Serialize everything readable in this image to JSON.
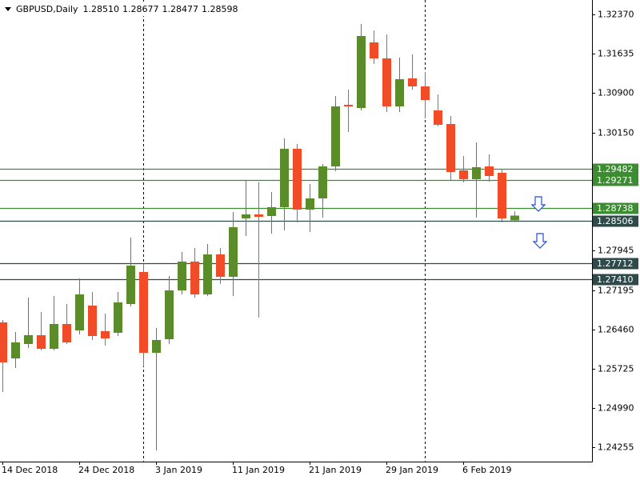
{
  "chart_data": {
    "type": "candlestick",
    "title": "GBPUSD,Daily",
    "header_values": [
      "1.28510",
      "1.28677",
      "1.28477",
      "1.28598"
    ],
    "up_color": "#5b8c2a",
    "down_color": "#f24b27",
    "categories": [
      "14 Dec 2018",
      null,
      null,
      null,
      null,
      null,
      "24 Dec 2018",
      null,
      null,
      null,
      null,
      null,
      "3 Jan 2019",
      null,
      null,
      null,
      null,
      null,
      "11 Jan 2019",
      null,
      null,
      null,
      null,
      null,
      "21 Jan 2019",
      null,
      null,
      null,
      null,
      null,
      "29 Jan 2019",
      null,
      null,
      null,
      null,
      null,
      "6 Feb 2019",
      null,
      null,
      null,
      null
    ],
    "open": [
      1.26595,
      1.2592,
      1.2619,
      1.26355,
      1.261,
      1.26565,
      1.26445,
      1.2691,
      1.2643,
      1.264,
      1.2694,
      1.2754,
      1.26025,
      1.2628,
      1.27195,
      1.27735,
      1.2712,
      1.2787,
      1.2745,
      1.28545,
      1.2862,
      1.2859,
      1.28755,
      1.2985,
      1.2871,
      1.2892,
      1.2952,
      1.30675,
      1.30615,
      1.31845,
      1.31545,
      1.30645,
      1.3117,
      1.3102,
      1.3057,
      1.30315,
      1.29445,
      1.2928,
      1.2952,
      1.294,
      1.2851
    ],
    "high": [
      1.2664,
      1.26415,
      1.2706,
      1.2679,
      1.2709,
      1.2694,
      1.2742,
      1.27165,
      1.2676,
      1.27165,
      1.28185,
      1.2769,
      1.2649,
      1.27465,
      1.27915,
      1.2799,
      1.28065,
      1.2799,
      1.28665,
      1.2925,
      1.2922,
      1.2904,
      1.30045,
      1.2994,
      1.2919,
      1.29565,
      1.3084,
      1.3096,
      1.3219,
      1.3207,
      1.31995,
      1.3156,
      1.3162,
      1.3129,
      1.3087,
      1.30465,
      1.29715,
      1.2997,
      1.29745,
      1.2946,
      1.28677
    ],
    "low": [
      1.2529,
      1.2574,
      1.26115,
      1.2607,
      1.2607,
      1.2619,
      1.2637,
      1.26265,
      1.2616,
      1.2634,
      1.26895,
      1.2577,
      1.24195,
      1.2619,
      1.2712,
      1.2706,
      1.2709,
      1.27315,
      1.2709,
      1.28215,
      1.26685,
      1.2826,
      1.2832,
      1.2847,
      1.2829,
      1.2856,
      1.2943,
      1.30165,
      1.3057,
      1.3144,
      1.3054,
      1.3054,
      1.3096,
      1.3042,
      1.3027,
      1.29265,
      1.2922,
      1.2856,
      1.29235,
      1.2847,
      1.28477
    ],
    "close": [
      1.25845,
      1.2622,
      1.26355,
      1.261,
      1.26565,
      1.2622,
      1.2712,
      1.2634,
      1.26295,
      1.2697,
      1.2766,
      1.26025,
      1.26265,
      1.27195,
      1.27735,
      1.2712,
      1.2787,
      1.2745,
      1.2838,
      1.2862,
      1.28575,
      1.28755,
      1.2985,
      1.2871,
      1.2892,
      1.2952,
      1.30645,
      1.30645,
      1.31965,
      1.31545,
      1.30645,
      1.31155,
      1.3102,
      1.30765,
      1.303,
      1.29415,
      1.2928,
      1.29505,
      1.2934,
      1.28545,
      1.28598
    ],
    "ylim": [
      1.23985,
      1.3264
    ],
    "yticks": [
      {
        "value": 1.3237,
        "label": "1.32370"
      },
      1.31635,
      {
        "value": 1.309,
        "label": "1.30900"
      },
      {
        "value": 1.3015,
        "label": "1.30150"
      },
      1.27945,
      1.27195,
      {
        "value": 1.2646,
        "label": "1.26460"
      },
      1.25725,
      {
        "value": 1.2499,
        "label": "1.24990"
      },
      1.24255
    ],
    "levels": [
      {
        "value": 1.29482,
        "label": "1.29482",
        "color": "#3c8c32"
      },
      {
        "value": 1.29271,
        "label": "1.29271",
        "color": "#3c8c32"
      },
      {
        "value": 1.28738,
        "label": "1.28738",
        "color": "#3c8c32"
      },
      {
        "value": 1.28506,
        "label": "1.28506",
        "color": "#2f4a4a"
      },
      {
        "value": 1.27712,
        "label": "1.27712",
        "color": "#2f4a4a"
      },
      {
        "value": 1.2741,
        "label": "1.27410",
        "color": "#2f4a4a"
      }
    ]
  }
}
